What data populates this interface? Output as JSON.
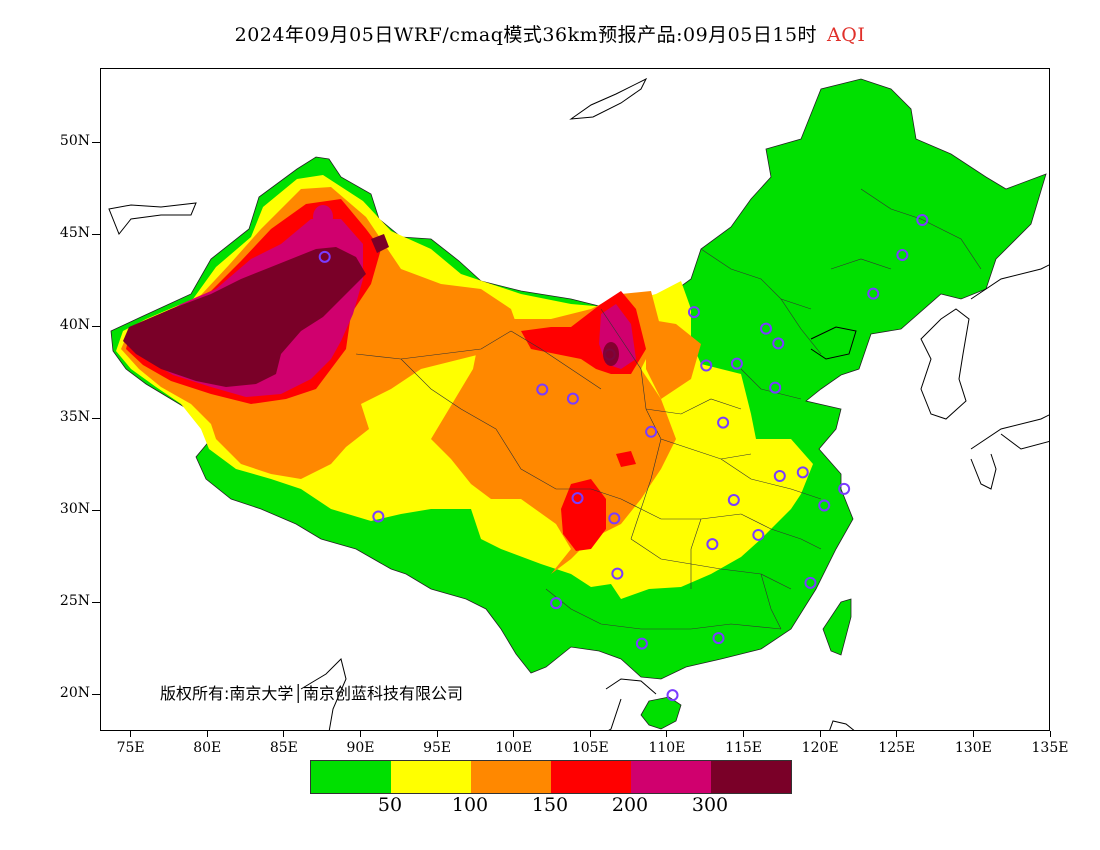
{
  "title": {
    "text": "2024年09月05日WRF/cmaq模式36km预报产品:09月05日15时",
    "variable": "AQI"
  },
  "axes": {
    "y_labels": [
      "50N",
      "45N",
      "40N",
      "35N",
      "30N",
      "25N",
      "20N"
    ],
    "x_labels": [
      "75E",
      "80E",
      "85E",
      "90E",
      "95E",
      "100E",
      "105E",
      "110E",
      "115E",
      "120E",
      "125E",
      "130E",
      "135E"
    ],
    "lat_range": [
      18,
      54
    ],
    "lon_range": [
      73,
      135
    ]
  },
  "copyright": "版权所有:南京大学│南京创蓝科技有限公司",
  "legend": {
    "colors": [
      "#00e000",
      "#ffff00",
      "#ff8800",
      "#ff0000",
      "#d0006e",
      "#7a0028"
    ],
    "labels": [
      "50",
      "100",
      "150",
      "200",
      "300"
    ]
  },
  "colors": {
    "good": "#00e000",
    "moderate": "#ffff00",
    "unhealthy_sensitive": "#ff8800",
    "unhealthy": "#ff0000",
    "very_unhealthy": "#d0006e",
    "hazardous": "#7a0028",
    "station_marker": "#7a3cff"
  },
  "stations": [
    [
      126.6,
      45.8
    ],
    [
      125.3,
      43.9
    ],
    [
      123.4,
      41.8
    ],
    [
      111.7,
      40.8
    ],
    [
      116.4,
      39.9
    ],
    [
      117.2,
      39.1
    ],
    [
      114.5,
      38.0
    ],
    [
      112.5,
      37.9
    ],
    [
      117.0,
      36.7
    ],
    [
      113.6,
      34.8
    ],
    [
      108.9,
      34.3
    ],
    [
      106.2,
      38.5
    ],
    [
      103.8,
      36.1
    ],
    [
      101.8,
      36.6
    ],
    [
      87.6,
      43.8
    ],
    [
      91.1,
      29.7
    ],
    [
      104.1,
      30.7
    ],
    [
      106.5,
      29.6
    ],
    [
      106.7,
      26.6
    ],
    [
      102.7,
      25.0
    ],
    [
      108.3,
      22.8
    ],
    [
      113.3,
      23.1
    ],
    [
      110.3,
      20.0
    ],
    [
      119.3,
      26.1
    ],
    [
      115.9,
      28.7
    ],
    [
      112.9,
      28.2
    ],
    [
      114.3,
      30.6
    ],
    [
      117.3,
      31.9
    ],
    [
      118.8,
      32.1
    ],
    [
      120.2,
      30.3
    ],
    [
      121.5,
      31.2
    ]
  ]
}
